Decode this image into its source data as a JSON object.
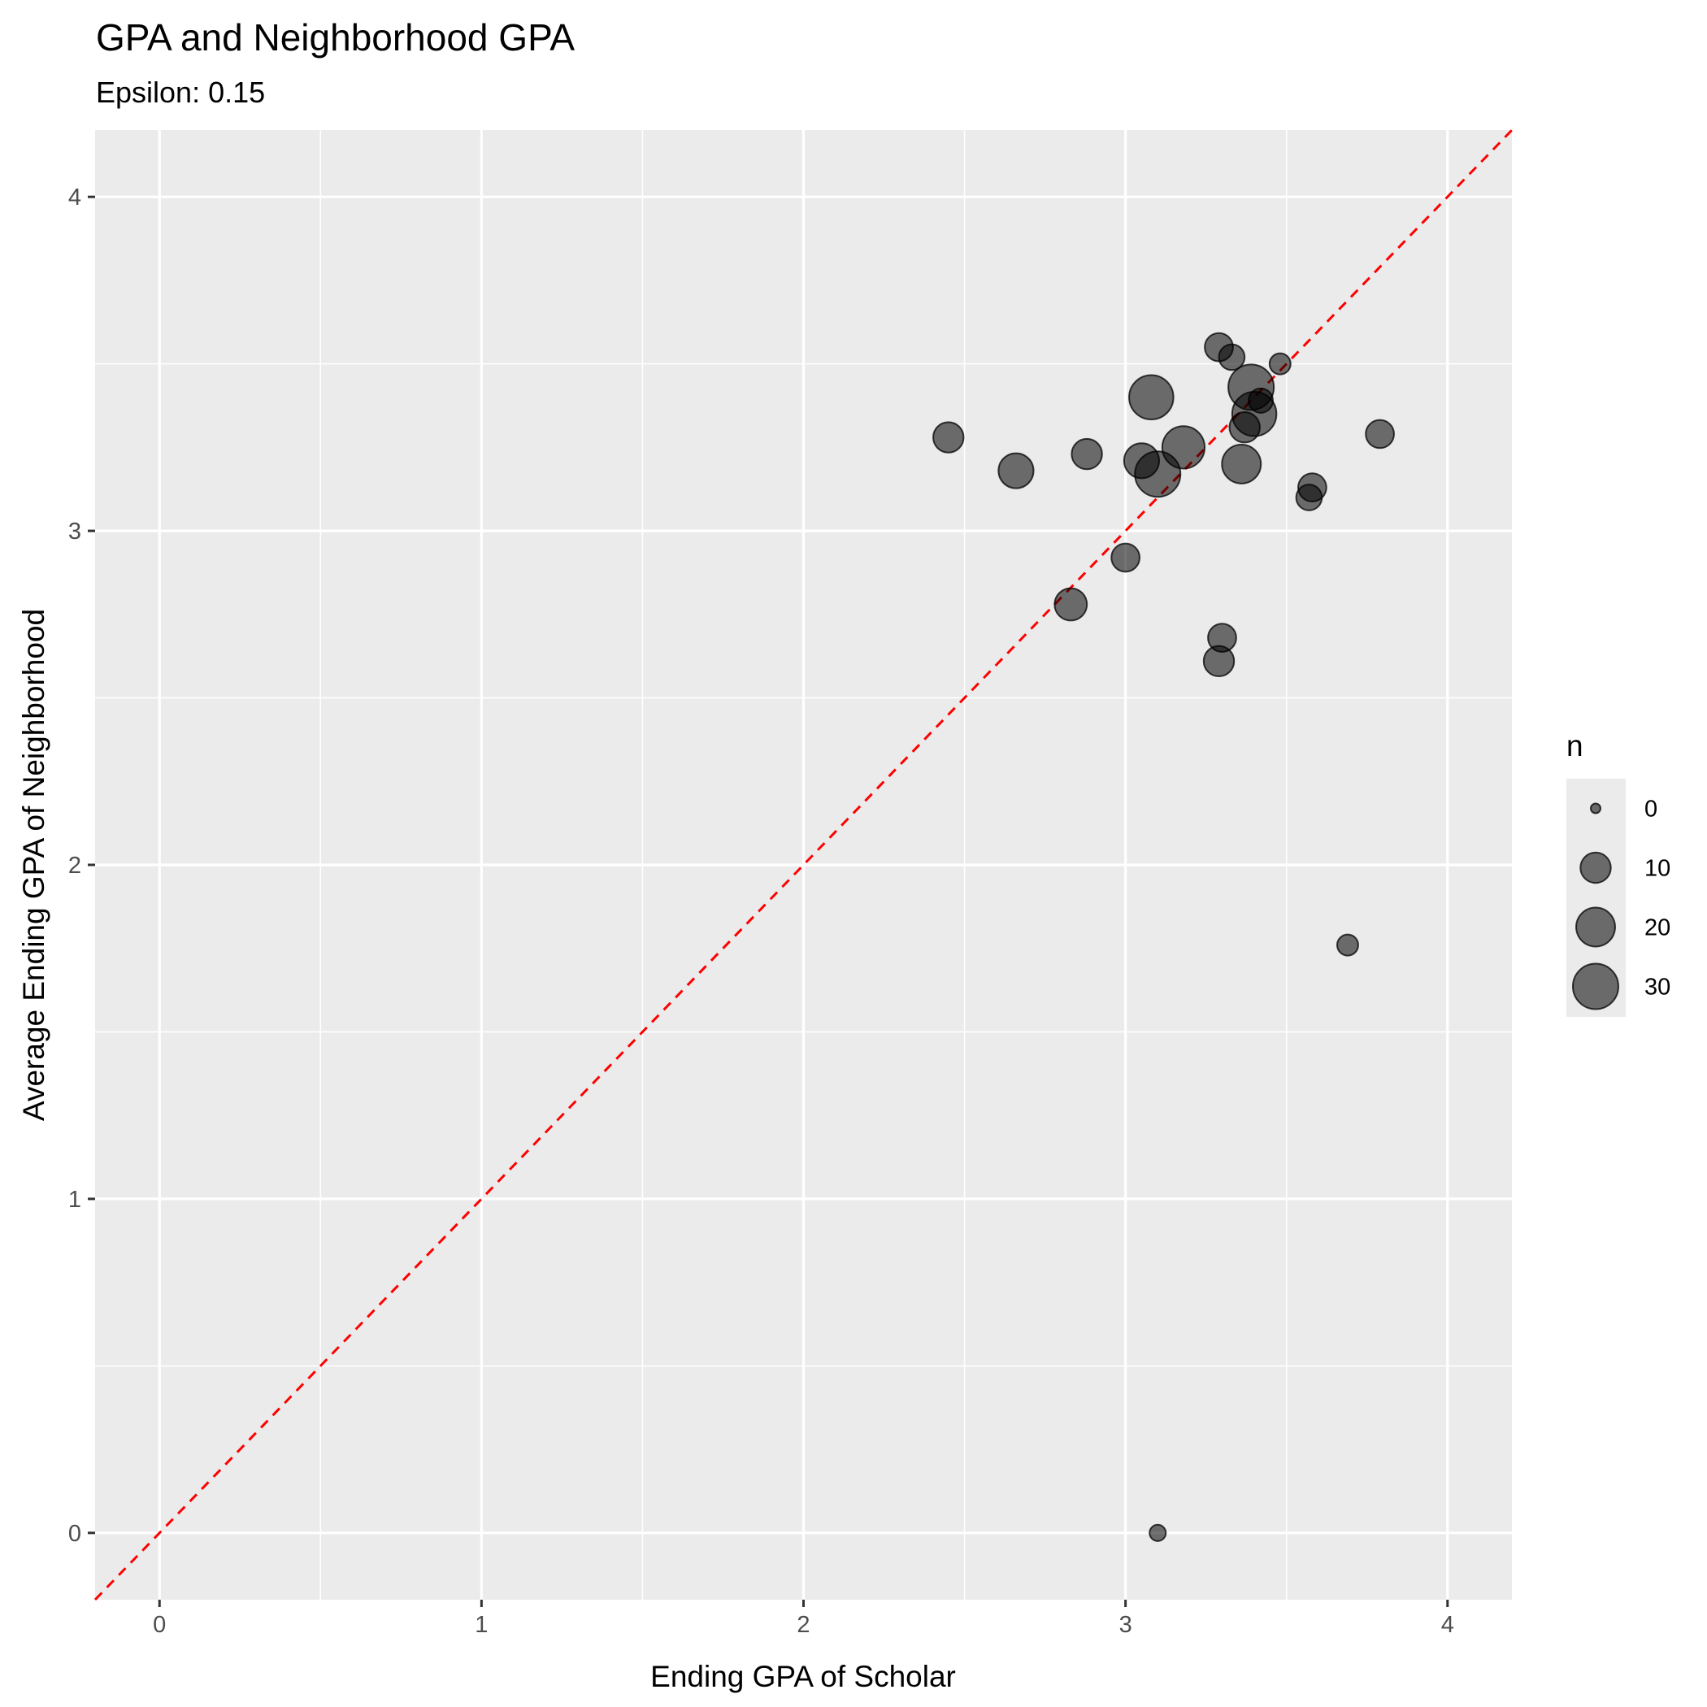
{
  "chart_data": {
    "type": "scatter",
    "title": "GPA and Neighborhood GPA",
    "subtitle": "Epsilon: 0.15",
    "xlabel": "Ending GPA of Scholar",
    "ylabel": "Average Ending GPA of Neighborhood",
    "xlim": [
      -0.2,
      4.2
    ],
    "ylim": [
      -0.2,
      4.2
    ],
    "x_ticks": [
      0,
      1,
      2,
      3,
      4
    ],
    "y_ticks": [
      0,
      1,
      2,
      3,
      4
    ],
    "grid": true,
    "reference_line": {
      "slope": 1,
      "intercept": 0,
      "style": "dashed",
      "color": "#ff0000"
    },
    "point_color": "#000000",
    "point_opacity": 0.55,
    "size_legend": {
      "title": "n",
      "position": "right",
      "breaks": [
        0,
        10,
        20,
        30
      ],
      "labels": [
        "0",
        "10",
        "20",
        "30"
      ]
    },
    "points": [
      {
        "x": 2.45,
        "y": 3.28,
        "n": 10
      },
      {
        "x": 2.66,
        "y": 3.18,
        "n": 15
      },
      {
        "x": 2.88,
        "y": 3.23,
        "n": 10
      },
      {
        "x": 2.83,
        "y": 2.78,
        "n": 12
      },
      {
        "x": 3.0,
        "y": 2.92,
        "n": 8
      },
      {
        "x": 3.05,
        "y": 3.21,
        "n": 15
      },
      {
        "x": 3.08,
        "y": 3.4,
        "n": 28
      },
      {
        "x": 3.1,
        "y": 3.17,
        "n": 30
      },
      {
        "x": 3.18,
        "y": 3.25,
        "n": 25
      },
      {
        "x": 3.1,
        "y": 0.0,
        "n": 1
      },
      {
        "x": 3.29,
        "y": 3.55,
        "n": 8
      },
      {
        "x": 3.33,
        "y": 3.52,
        "n": 6
      },
      {
        "x": 3.3,
        "y": 2.68,
        "n": 8
      },
      {
        "x": 3.29,
        "y": 2.61,
        "n": 10
      },
      {
        "x": 3.36,
        "y": 3.2,
        "n": 20
      },
      {
        "x": 3.37,
        "y": 3.31,
        "n": 10
      },
      {
        "x": 3.39,
        "y": 3.43,
        "n": 30
      },
      {
        "x": 3.4,
        "y": 3.35,
        "n": 28
      },
      {
        "x": 3.42,
        "y": 3.39,
        "n": 5
      },
      {
        "x": 3.48,
        "y": 3.5,
        "n": 3
      },
      {
        "x": 3.57,
        "y": 3.1,
        "n": 6
      },
      {
        "x": 3.58,
        "y": 3.13,
        "n": 8
      },
      {
        "x": 3.69,
        "y": 1.76,
        "n": 3
      },
      {
        "x": 3.79,
        "y": 3.29,
        "n": 8
      }
    ]
  }
}
